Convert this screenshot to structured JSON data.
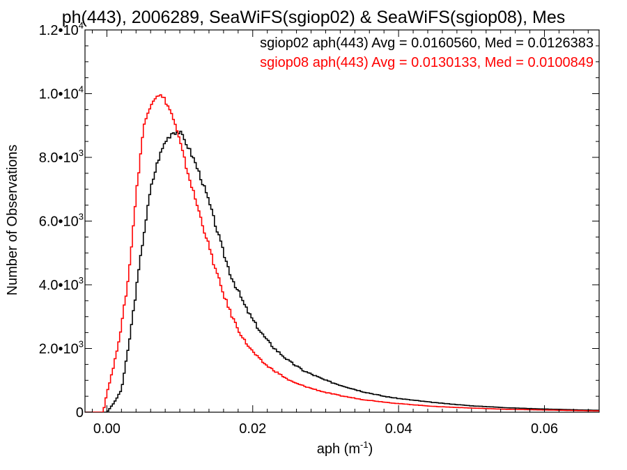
{
  "chart_data": {
    "type": "line",
    "title": "ph(443), 2006289, SeaWiFS(sgiop02) & SeaWiFS(sgiop08), Mes",
    "xlabel": "aph (m",
    "xlabel_sup": "-1",
    "xlabel_suffix": ")",
    "ylabel": "Number of Observations",
    "xlim": [
      -0.003,
      0.0675
    ],
    "ylim": [
      0,
      12000
    ],
    "grid": false,
    "legend_placement": "top-right",
    "xticks": [
      {
        "value": 0.0,
        "label": "0.00"
      },
      {
        "value": 0.02,
        "label": "0.02"
      },
      {
        "value": 0.04,
        "label": "0.04"
      },
      {
        "value": 0.06,
        "label": "0.06"
      }
    ],
    "yticks": [
      {
        "value": 0,
        "label": "0",
        "sup": ""
      },
      {
        "value": 2000,
        "label": "2.0•10",
        "sup": "3"
      },
      {
        "value": 4000,
        "label": "4.0•10",
        "sup": "3"
      },
      {
        "value": 6000,
        "label": "6.0•10",
        "sup": "3"
      },
      {
        "value": 8000,
        "label": "8.0•10",
        "sup": "3"
      },
      {
        "value": 10000,
        "label": "1.0•10",
        "sup": "4"
      },
      {
        "value": 12000,
        "label": "1.2•10",
        "sup": "4"
      }
    ],
    "series": [
      {
        "name": "sgiop02 aph(443) Avg = 0.0160560, Med = 0.0126383",
        "color": "#000000",
        "x": [
          0.0,
          0.001,
          0.002,
          0.003,
          0.004,
          0.005,
          0.006,
          0.007,
          0.008,
          0.009,
          0.01,
          0.011,
          0.012,
          0.013,
          0.014,
          0.015,
          0.016,
          0.017,
          0.018,
          0.019,
          0.02,
          0.021,
          0.022,
          0.023,
          0.024,
          0.025,
          0.026,
          0.027,
          0.028,
          0.03,
          0.032,
          0.035,
          0.038,
          0.04,
          0.045,
          0.05,
          0.055,
          0.06,
          0.065,
          0.0675
        ],
        "y": [
          0,
          300,
          700,
          2100,
          3800,
          5500,
          7000,
          7900,
          8500,
          8800,
          8800,
          8400,
          7900,
          7300,
          6600,
          5800,
          5000,
          4300,
          3800,
          3300,
          2900,
          2550,
          2250,
          2000,
          1800,
          1600,
          1450,
          1300,
          1200,
          1000,
          850,
          650,
          500,
          430,
          300,
          200,
          140,
          100,
          70,
          60
        ]
      },
      {
        "name": "sgiop08 aph(443) Avg = 0.0130133, Med = 0.0100849",
        "color": "#ff0000",
        "x": [
          -0.0005,
          0.0,
          0.001,
          0.002,
          0.003,
          0.004,
          0.005,
          0.006,
          0.007,
          0.008,
          0.009,
          0.01,
          0.011,
          0.012,
          0.013,
          0.014,
          0.015,
          0.016,
          0.017,
          0.018,
          0.019,
          0.02,
          0.021,
          0.022,
          0.023,
          0.024,
          0.025,
          0.026,
          0.028,
          0.03,
          0.032,
          0.035,
          0.038,
          0.04,
          0.045,
          0.05,
          0.055,
          0.06,
          0.065,
          0.0675
        ],
        "y": [
          0,
          600,
          1500,
          2700,
          4300,
          6800,
          8900,
          9700,
          10000,
          9800,
          9300,
          8500,
          7600,
          6800,
          6000,
          5200,
          4400,
          3700,
          3100,
          2600,
          2200,
          1900,
          1650,
          1450,
          1300,
          1150,
          1000,
          900,
          750,
          620,
          520,
          400,
          320,
          270,
          180,
          130,
          90,
          70,
          50,
          40
        ]
      }
    ]
  }
}
